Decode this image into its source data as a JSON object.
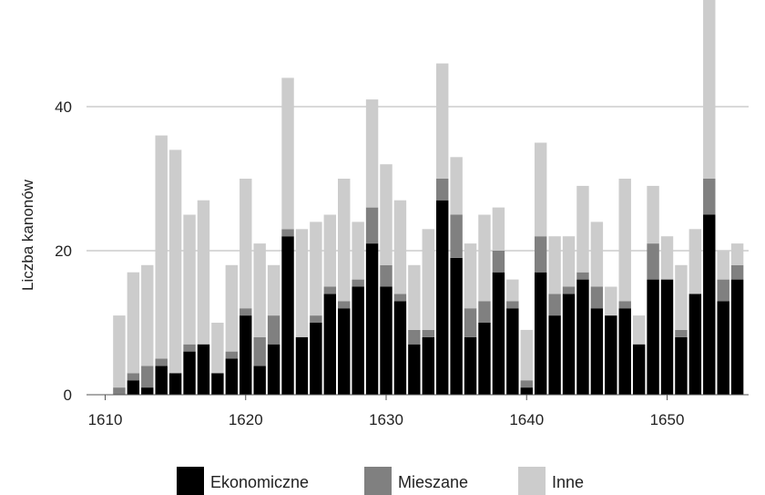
{
  "chart_data": {
    "type": "bar",
    "stacked": true,
    "ylabel": "Liczba kanonów",
    "xlabel": "",
    "title": "",
    "xlim": [
      1608,
      1656
    ],
    "ylim": [
      0,
      55
    ],
    "x_ticks": [
      1610,
      1620,
      1630,
      1640,
      1650
    ],
    "y_ticks": [
      0,
      20,
      40
    ],
    "grid": "horizontal",
    "legend_position": "bottom",
    "x": [
      1611,
      1612,
      1613,
      1614,
      1615,
      1616,
      1617,
      1618,
      1619,
      1620,
      1621,
      1622,
      1623,
      1624,
      1625,
      1626,
      1627,
      1628,
      1629,
      1630,
      1631,
      1632,
      1633,
      1634,
      1635,
      1636,
      1637,
      1638,
      1639,
      1640,
      1641,
      1642,
      1643,
      1644,
      1645,
      1646,
      1647,
      1648,
      1649,
      1650,
      1651,
      1652,
      1653,
      1654,
      1655
    ],
    "series": [
      {
        "name": "Ekonomiczne",
        "color": "#000000",
        "values": [
          0,
          2,
          1,
          4,
          3,
          6,
          7,
          3,
          5,
          11,
          4,
          7,
          22,
          8,
          10,
          14,
          12,
          15,
          21,
          15,
          13,
          7,
          8,
          27,
          19,
          8,
          10,
          17,
          12,
          1,
          17,
          11,
          14,
          16,
          12,
          11,
          12,
          7,
          16,
          16,
          8,
          14,
          25,
          13,
          16
        ]
      },
      {
        "name": "Mieszane",
        "color": "#808080",
        "values": [
          1,
          1,
          3,
          1,
          0,
          1,
          0,
          0,
          1,
          1,
          4,
          4,
          1,
          0,
          1,
          1,
          1,
          1,
          5,
          3,
          1,
          2,
          1,
          3,
          6,
          4,
          3,
          3,
          1,
          1,
          5,
          3,
          1,
          1,
          3,
          0,
          1,
          0,
          5,
          0,
          1,
          0,
          5,
          3,
          2
        ]
      },
      {
        "name": "Inne",
        "color": "#cccccc",
        "values": [
          10,
          14,
          14,
          31,
          31,
          18,
          20,
          7,
          12,
          18,
          13,
          7,
          21,
          15,
          13,
          10,
          17,
          8,
          15,
          14,
          13,
          9,
          14,
          16,
          8,
          9,
          12,
          6,
          3,
          7,
          13,
          8,
          7,
          12,
          9,
          4,
          17,
          4,
          8,
          6,
          9,
          9,
          25,
          4,
          3
        ]
      }
    ]
  }
}
